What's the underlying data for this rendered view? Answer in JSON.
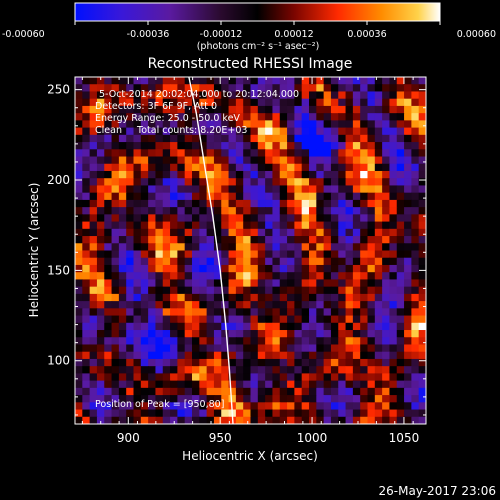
{
  "chart_data": {
    "type": "heatmap",
    "title": "Reconstructed RHESSI Image",
    "xlabel": "Heliocentric X (arcsec)",
    "ylabel": "Heliocentric Y (arcsec)",
    "xlim": [
      871,
      1062
    ],
    "ylim": [
      65,
      257
    ],
    "x_ticks": [
      900,
      950,
      1000,
      1050
    ],
    "y_ticks": [
      100,
      150,
      200,
      250
    ],
    "colorbar": {
      "range": [
        -0.0006,
        0.0006
      ],
      "ticks": [
        "-0.00060",
        "-0.00036",
        "-0.00012",
        "0.00012",
        "0.00036",
        "0.00060"
      ],
      "unit_label": "(photons cm⁻² s⁻¹ asec⁻²)"
    },
    "annotations": [
      "5-Oct-2014 20:02:04.000 to 20:12:04.000",
      "Detectors: 3F 6F 9F, Att 0",
      "Energy Range: 25.0 - 50.0 keV",
      "Clean     Total counts: 8.20E+03"
    ],
    "peak_label": "Position of Peak = [950,80]",
    "peak": [
      950,
      80
    ],
    "grid": false,
    "limb_points": [
      [
        933,
        257
      ],
      [
        937,
        237
      ],
      [
        942,
        205
      ],
      [
        946,
        180
      ],
      [
        950,
        150
      ],
      [
        953,
        120
      ],
      [
        955,
        95
      ],
      [
        956,
        80
      ],
      [
        957,
        65
      ]
    ],
    "grid_cells": 48,
    "seed": 20141005
  },
  "footer": {
    "date": "26-May-2017 23:06"
  }
}
